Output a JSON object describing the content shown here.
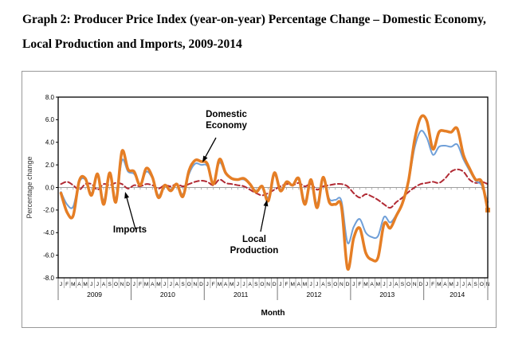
{
  "title": {
    "line1": "Graph 2: Producer Price Index (year-on-year) Percentage Change –  Domestic Economy,",
    "line2": "Local Production and Imports, 2009-2014"
  },
  "chart_data": {
    "type": "line",
    "xlabel": "Month",
    "ylabel": "Percentage change",
    "ylim": [
      -8.0,
      8.0
    ],
    "y_tick_step": 2.0,
    "grid": "off",
    "legend": "annotated-arrows",
    "x": {
      "month_letters": "JFMAMJJASOND",
      "years": [
        {
          "label": "2009",
          "months": 12
        },
        {
          "label": "2010",
          "months": 12
        },
        {
          "label": "2011",
          "months": 12
        },
        {
          "label": "2012",
          "months": 12
        },
        {
          "label": "2013",
          "months": 12
        },
        {
          "label": "2014",
          "months": 11
        }
      ]
    },
    "series": [
      {
        "name": "Imports",
        "color": "#B12A34",
        "style": "dashed",
        "width": 2,
        "values": [
          0.3,
          0.5,
          0.2,
          -0.2,
          0.3,
          0.3,
          -0.2,
          0.3,
          0.2,
          0.4,
          0.3,
          -0.1,
          0.2,
          0.1,
          0.3,
          0.2,
          -0.1,
          0.2,
          0.1,
          0.3,
          0.1,
          0.3,
          0.5,
          0.6,
          0.5,
          0.2,
          0.7,
          0.4,
          0.3,
          0.2,
          0.1,
          -0.2,
          -0.5,
          -0.7,
          -0.5,
          -0.2,
          0.1,
          0.3,
          0.2,
          0.4,
          0.1,
          0.3,
          -0.2,
          0.1,
          0.2,
          0.3,
          0.3,
          0.1,
          -0.5,
          -0.9,
          -0.6,
          -0.8,
          -1.1,
          -1.5,
          -1.8,
          -1.3,
          -0.9,
          -0.4,
          0.0,
          0.3,
          0.4,
          0.5,
          0.4,
          0.8,
          1.4,
          1.6,
          1.4,
          0.7,
          0.4,
          0.5,
          0.3
        ]
      },
      {
        "name": "Domestic Economy",
        "color": "#6F9FD8",
        "style": "solid",
        "width": 2,
        "values": [
          -0.4,
          -1.5,
          -1.7,
          0.5,
          0.7,
          -0.5,
          1.0,
          -1.1,
          1.1,
          -1.0,
          2.4,
          1.4,
          1.2,
          0.3,
          1.4,
          0.8,
          -0.7,
          0.2,
          -0.2,
          0.3,
          -0.6,
          1.2,
          2.1,
          2.0,
          1.9,
          0.4,
          2.2,
          1.2,
          0.8,
          0.7,
          0.7,
          0.3,
          -0.3,
          0.1,
          -0.9,
          1.1,
          -0.2,
          0.5,
          0.2,
          0.7,
          -1.2,
          0.6,
          -1.4,
          0.8,
          -1.0,
          -1.1,
          -1.2,
          -4.9,
          -3.5,
          -2.8,
          -4.0,
          -4.4,
          -4.3,
          -2.6,
          -3.1,
          -2.4,
          -1.3,
          0.5,
          3.5,
          5.0,
          4.4,
          2.9,
          3.6,
          3.7,
          3.6,
          3.8,
          2.5,
          1.5,
          0.6,
          0.2,
          -1.3
        ]
      },
      {
        "name": "Local Production",
        "color": "#E57E25",
        "style": "solid",
        "width": 3.5,
        "end_marker": "square",
        "values": [
          -0.5,
          -2.2,
          -2.5,
          0.6,
          0.8,
          -0.7,
          1.2,
          -1.5,
          1.3,
          -1.3,
          3.2,
          1.6,
          1.4,
          0.2,
          1.7,
          0.9,
          -0.9,
          0.2,
          -0.3,
          0.3,
          -0.8,
          1.5,
          2.4,
          2.3,
          2.1,
          0.3,
          2.5,
          1.3,
          0.8,
          0.7,
          0.8,
          0.3,
          -0.4,
          0.1,
          -1.2,
          1.3,
          -0.3,
          0.5,
          0.2,
          0.8,
          -1.5,
          0.7,
          -1.8,
          0.9,
          -1.3,
          -1.5,
          -1.7,
          -7.2,
          -4.5,
          -3.6,
          -5.8,
          -6.4,
          -6.2,
          -3.2,
          -3.6,
          -2.5,
          -1.4,
          0.6,
          4.2,
          6.2,
          5.9,
          3.4,
          4.9,
          5.0,
          4.9,
          5.2,
          2.9,
          1.7,
          0.7,
          0.5,
          -2.0
        ]
      }
    ],
    "annotations": [
      {
        "id": "domestic-economy",
        "label": "Domestic\nEconomy"
      },
      {
        "id": "imports",
        "label": "Imports"
      },
      {
        "id": "local-production",
        "label": "Local\nProduction"
      }
    ]
  }
}
